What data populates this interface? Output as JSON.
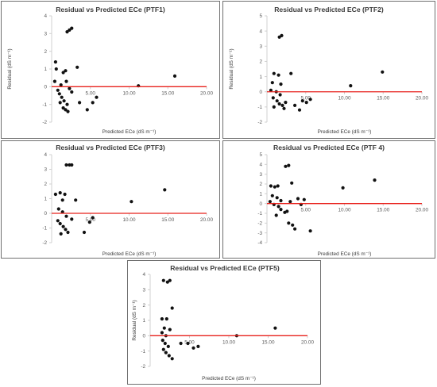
{
  "figure": {
    "colors": {
      "points": "#111111",
      "zero_line": "#e8211b",
      "grid_axis": "#d0d0d0",
      "panel_border": "#6f6f6f"
    }
  },
  "chart_data": [
    {
      "type": "scatter",
      "title": "Residual vs Predicted ECe (PTF1)",
      "xlabel": "Predicted ECe (dS m⁻¹)",
      "ylabel": "Residual (dS m⁻¹)",
      "xlim": [
        0,
        20
      ],
      "ylim": [
        -2,
        4
      ],
      "xticks": [
        {
          "v": 5,
          "t": "5.00"
        },
        {
          "v": 10,
          "t": "10.00"
        },
        {
          "v": 15,
          "t": "15.00"
        },
        {
          "v": 20,
          "t": "20.00"
        }
      ],
      "yticks": [
        {
          "v": 4,
          "t": "4"
        },
        {
          "v": 3,
          "t": "3"
        },
        {
          "v": 2,
          "t": "2"
        },
        {
          "v": 1,
          "t": "1"
        },
        {
          "v": 0,
          "t": "0"
        },
        {
          "v": -1,
          "t": "-1"
        },
        {
          "v": -2,
          "t": "-2"
        }
      ],
      "points": [
        [
          2.6,
          3.3
        ],
        [
          2.3,
          3.2
        ],
        [
          2.0,
          3.1
        ],
        [
          0.5,
          1.4
        ],
        [
          0.6,
          1.0
        ],
        [
          1.8,
          0.9
        ],
        [
          1.5,
          0.8
        ],
        [
          3.3,
          1.1
        ],
        [
          0.4,
          0.3
        ],
        [
          1.2,
          0.1
        ],
        [
          1.9,
          0.3
        ],
        [
          2.3,
          -0.1
        ],
        [
          0.8,
          -0.2
        ],
        [
          1.0,
          -0.4
        ],
        [
          1.3,
          -0.6
        ],
        [
          1.6,
          -0.8
        ],
        [
          2.0,
          -1.0
        ],
        [
          1.5,
          -1.2
        ],
        [
          1.8,
          -1.3
        ],
        [
          2.1,
          -1.4
        ],
        [
          3.6,
          -0.9
        ],
        [
          4.6,
          -1.3
        ],
        [
          5.3,
          -0.9
        ],
        [
          5.8,
          -0.6
        ],
        [
          11.2,
          0.05
        ],
        [
          15.9,
          0.6
        ],
        [
          1.1,
          -0.9
        ],
        [
          2.6,
          -0.3
        ]
      ],
      "grid": false,
      "legend": "none"
    },
    {
      "type": "scatter",
      "title": "Residual vs Predicted ECe (PTF2)",
      "xlabel": "Predicted ECe (dS m⁻¹)",
      "ylabel": "Residual (dS m⁻¹)",
      "xlim": [
        0,
        20
      ],
      "ylim": [
        -2,
        5
      ],
      "xticks": [
        {
          "v": 5,
          "t": "5.00"
        },
        {
          "v": 10,
          "t": "10.00"
        },
        {
          "v": 15,
          "t": "15.00"
        },
        {
          "v": 20,
          "t": "20.00"
        }
      ],
      "yticks": [
        {
          "v": 5,
          "t": "5"
        },
        {
          "v": 4,
          "t": "4"
        },
        {
          "v": 3,
          "t": "3"
        },
        {
          "v": 2,
          "t": "2"
        },
        {
          "v": 1,
          "t": "1"
        },
        {
          "v": 0,
          "t": "0"
        },
        {
          "v": -1,
          "t": "-1"
        },
        {
          "v": -2,
          "t": "-2"
        }
      ],
      "points": [
        [
          1.9,
          3.7
        ],
        [
          1.6,
          3.6
        ],
        [
          0.9,
          1.2
        ],
        [
          1.5,
          1.1
        ],
        [
          3.1,
          1.2
        ],
        [
          0.7,
          0.6
        ],
        [
          1.8,
          0.5
        ],
        [
          0.5,
          0.1
        ],
        [
          1.2,
          0.0
        ],
        [
          1.7,
          -0.2
        ],
        [
          0.8,
          -0.4
        ],
        [
          1.3,
          -0.6
        ],
        [
          1.6,
          -0.8
        ],
        [
          2.0,
          -0.9
        ],
        [
          2.4,
          -0.7
        ],
        [
          0.9,
          -1.0
        ],
        [
          3.6,
          -0.9
        ],
        [
          4.2,
          -1.2
        ],
        [
          4.6,
          -0.6
        ],
        [
          5.1,
          -0.7
        ],
        [
          5.6,
          -0.5
        ],
        [
          10.8,
          0.4
        ],
        [
          14.9,
          1.3
        ],
        [
          2.2,
          -1.1
        ]
      ],
      "grid": false,
      "legend": "none"
    },
    {
      "type": "scatter",
      "title": "Residual vs Predicted ECe (PTF3)",
      "xlabel": "Predicted ECe (dS m⁻¹)",
      "ylabel": "",
      "xlim": [
        0,
        20
      ],
      "ylim": [
        -2,
        4
      ],
      "xticks": [
        {
          "v": 5,
          "t": "5.00"
        },
        {
          "v": 10,
          "t": "10.00"
        },
        {
          "v": 15,
          "t": "15.00"
        },
        {
          "v": 20,
          "t": "20.00"
        }
      ],
      "yticks": [
        {
          "v": 4,
          "t": "4"
        },
        {
          "v": 3,
          "t": "3"
        },
        {
          "v": 2,
          "t": "2"
        },
        {
          "v": 1,
          "t": "1"
        },
        {
          "v": 0,
          "t": "0"
        },
        {
          "v": -1,
          "t": "-1"
        },
        {
          "v": -2,
          "t": "-2"
        }
      ],
      "points": [
        [
          1.9,
          3.3
        ],
        [
          2.3,
          3.3
        ],
        [
          2.6,
          3.3
        ],
        [
          0.5,
          1.3
        ],
        [
          1.1,
          1.4
        ],
        [
          1.7,
          1.3
        ],
        [
          1.4,
          0.9
        ],
        [
          3.1,
          0.9
        ],
        [
          0.9,
          0.3
        ],
        [
          1.4,
          0.1
        ],
        [
          1.9,
          -0.2
        ],
        [
          0.8,
          -0.5
        ],
        [
          1.1,
          -0.7
        ],
        [
          1.5,
          -0.9
        ],
        [
          1.8,
          -1.1
        ],
        [
          2.1,
          -1.3
        ],
        [
          1.2,
          -1.4
        ],
        [
          4.2,
          -1.3
        ],
        [
          4.9,
          -0.6
        ],
        [
          5.3,
          -0.3
        ],
        [
          10.3,
          0.8
        ],
        [
          14.6,
          1.6
        ],
        [
          2.6,
          -0.4
        ]
      ],
      "grid": false,
      "legend": "none"
    },
    {
      "type": "scatter",
      "title": "Residual vs Predicted ECe (PTF 4)",
      "xlabel": "Predicted ECe (dS m⁻¹)",
      "ylabel": "",
      "xlim": [
        0,
        20
      ],
      "ylim": [
        -4,
        5
      ],
      "xticks": [
        {
          "v": 5,
          "t": "5.00"
        },
        {
          "v": 10,
          "t": "10.00"
        },
        {
          "v": 15,
          "t": "15.00"
        },
        {
          "v": 20,
          "t": "20.00"
        }
      ],
      "yticks": [
        {
          "v": 5,
          "t": "5"
        },
        {
          "v": 4,
          "t": "4"
        },
        {
          "v": 3,
          "t": "3"
        },
        {
          "v": 2,
          "t": "2"
        },
        {
          "v": 1,
          "t": "1"
        },
        {
          "v": 0,
          "t": "0"
        },
        {
          "v": -1,
          "t": "-1"
        },
        {
          "v": -2,
          "t": "-2"
        },
        {
          "v": -3,
          "t": "-3"
        },
        {
          "v": -4,
          "t": "-4"
        }
      ],
      "points": [
        [
          2.4,
          3.8
        ],
        [
          2.8,
          3.9
        ],
        [
          0.5,
          1.8
        ],
        [
          1.0,
          1.7
        ],
        [
          1.4,
          1.8
        ],
        [
          3.2,
          2.1
        ],
        [
          0.7,
          0.8
        ],
        [
          1.3,
          0.6
        ],
        [
          1.8,
          0.3
        ],
        [
          0.4,
          0.2
        ],
        [
          0.9,
          -0.1
        ],
        [
          1.5,
          -0.3
        ],
        [
          1.8,
          -0.6
        ],
        [
          2.3,
          -0.9
        ],
        [
          1.2,
          -1.2
        ],
        [
          2.8,
          -2.0
        ],
        [
          3.3,
          -2.2
        ],
        [
          3.6,
          -2.6
        ],
        [
          2.6,
          -0.8
        ],
        [
          4.0,
          0.5
        ],
        [
          4.8,
          0.4
        ],
        [
          5.6,
          -2.8
        ],
        [
          4.4,
          -0.1
        ],
        [
          9.8,
          1.6
        ],
        [
          13.9,
          2.4
        ],
        [
          3.0,
          0.2
        ]
      ],
      "grid": false,
      "legend": "none"
    },
    {
      "type": "scatter",
      "title": "Residual vs Predicted ECe (PTF5)",
      "xlabel": "Predicted ECe (dS m⁻¹)",
      "ylabel": "Residual (dS m⁻¹)",
      "xlim": [
        0,
        20
      ],
      "ylim": [
        -2,
        4
      ],
      "xticks": [
        {
          "v": 5,
          "t": "5.00"
        },
        {
          "v": 10,
          "t": "10.00"
        },
        {
          "v": 15,
          "t": "15.00"
        },
        {
          "v": 20,
          "t": "20.00"
        }
      ],
      "yticks": [
        {
          "v": 4,
          "t": "4"
        },
        {
          "v": 3,
          "t": "3"
        },
        {
          "v": 2,
          "t": "2"
        },
        {
          "v": 1,
          "t": "1"
        },
        {
          "v": 0,
          "t": "0"
        },
        {
          "v": -1,
          "t": "-1"
        },
        {
          "v": -2,
          "t": "-2"
        }
      ],
      "points": [
        [
          1.7,
          3.6
        ],
        [
          2.2,
          3.5
        ],
        [
          2.5,
          3.6
        ],
        [
          2.8,
          1.8
        ],
        [
          1.5,
          1.1
        ],
        [
          2.1,
          1.1
        ],
        [
          1.8,
          0.5
        ],
        [
          1.5,
          0.2
        ],
        [
          2.0,
          0.0
        ],
        [
          1.6,
          -0.3
        ],
        [
          1.9,
          -0.5
        ],
        [
          2.3,
          -0.7
        ],
        [
          1.7,
          -0.9
        ],
        [
          2.0,
          -1.1
        ],
        [
          2.4,
          -1.3
        ],
        [
          2.8,
          -1.5
        ],
        [
          3.9,
          -0.5
        ],
        [
          4.8,
          -0.5
        ],
        [
          5.5,
          -0.8
        ],
        [
          6.1,
          -0.7
        ],
        [
          11.0,
          0.0
        ],
        [
          15.9,
          0.5
        ],
        [
          2.5,
          0.4
        ]
      ],
      "grid": false,
      "legend": "none"
    }
  ]
}
